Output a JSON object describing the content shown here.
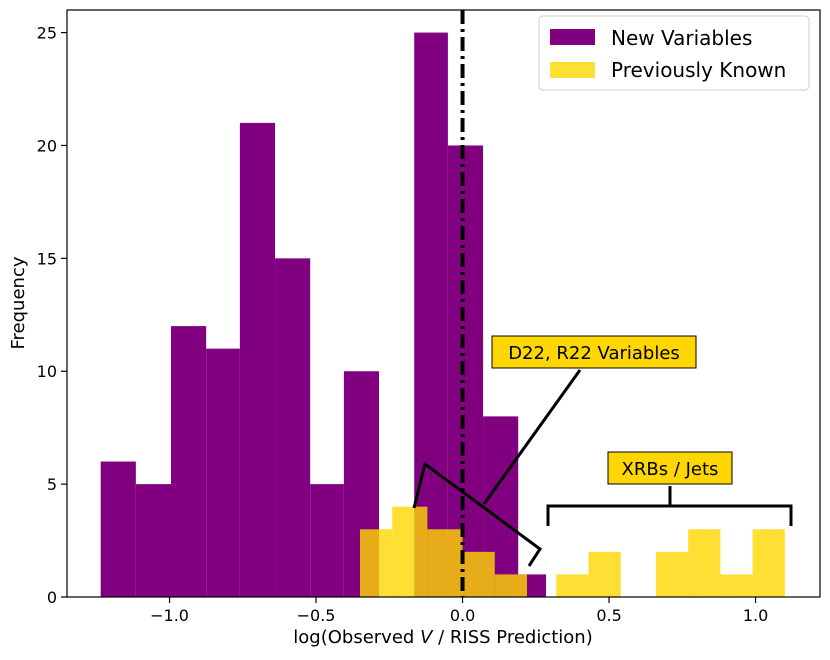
{
  "chart_data": {
    "type": "bar",
    "xlabel_prefix": "log(Observed ",
    "xlabel_var": "V",
    "xlabel_suffix": " / RISS Prediction)",
    "ylabel": "Frequency",
    "xlim": [
      -1.35,
      1.22
    ],
    "ylim": [
      0,
      26
    ],
    "xticks": [
      -1.0,
      -0.5,
      0.0,
      0.5,
      1.0
    ],
    "xtick_labels": [
      "−1.0",
      "−0.5",
      "0.0",
      "0.5",
      "1.0"
    ],
    "yticks": [
      0,
      5,
      10,
      15,
      20,
      25
    ],
    "ytick_labels": [
      "0",
      "5",
      "10",
      "15",
      "20",
      "25"
    ],
    "vline_x": 0.0,
    "legend_position": "top-right",
    "series": [
      {
        "name": "New Variables",
        "color": "#800080",
        "opacity": 1.0,
        "bins": [
          {
            "x0": -1.235,
            "x1": -1.115,
            "value": 6
          },
          {
            "x0": -1.115,
            "x1": -0.995,
            "value": 5
          },
          {
            "x0": -0.995,
            "x1": -0.875,
            "value": 12
          },
          {
            "x0": -0.875,
            "x1": -0.76,
            "value": 11
          },
          {
            "x0": -0.76,
            "x1": -0.64,
            "value": 21
          },
          {
            "x0": -0.64,
            "x1": -0.52,
            "value": 15
          },
          {
            "x0": -0.52,
            "x1": -0.405,
            "value": 5
          },
          {
            "x0": -0.405,
            "x1": -0.285,
            "value": 10
          },
          {
            "x0": -0.285,
            "x1": -0.165,
            "value": 0
          },
          {
            "x0": -0.165,
            "x1": -0.05,
            "value": 25
          },
          {
            "x0": -0.05,
            "x1": 0.07,
            "value": 20
          },
          {
            "x0": 0.07,
            "x1": 0.19,
            "value": 8
          },
          {
            "x0": 0.19,
            "x1": 0.285,
            "value": 1
          }
        ]
      },
      {
        "name": "Previously Known",
        "color": "#FFD700",
        "opacity": 0.8,
        "bins": [
          {
            "x0": -0.35,
            "x1": -0.24,
            "value": 3
          },
          {
            "x0": -0.24,
            "x1": -0.12,
            "value": 4
          },
          {
            "x0": -0.12,
            "x1": 0.0,
            "value": 3
          },
          {
            "x0": 0.0,
            "x1": 0.11,
            "value": 2
          },
          {
            "x0": 0.11,
            "x1": 0.22,
            "value": 1
          },
          {
            "x0": 0.22,
            "x1": 0.32,
            "value": 0
          },
          {
            "x0": 0.32,
            "x1": 0.43,
            "value": 1
          },
          {
            "x0": 0.43,
            "x1": 0.54,
            "value": 2
          },
          {
            "x0": 0.54,
            "x1": 0.66,
            "value": 0
          },
          {
            "x0": 0.66,
            "x1": 0.77,
            "value": 2
          },
          {
            "x0": 0.77,
            "x1": 0.88,
            "value": 3
          },
          {
            "x0": 0.88,
            "x1": 0.99,
            "value": 1
          },
          {
            "x0": 0.99,
            "x1": 1.1,
            "value": 3
          }
        ]
      }
    ],
    "annotations": [
      {
        "text": "D22, R22 Variables",
        "box_color": "#FFD700"
      },
      {
        "text": "XRBs / Jets",
        "box_color": "#FFD700"
      }
    ]
  }
}
